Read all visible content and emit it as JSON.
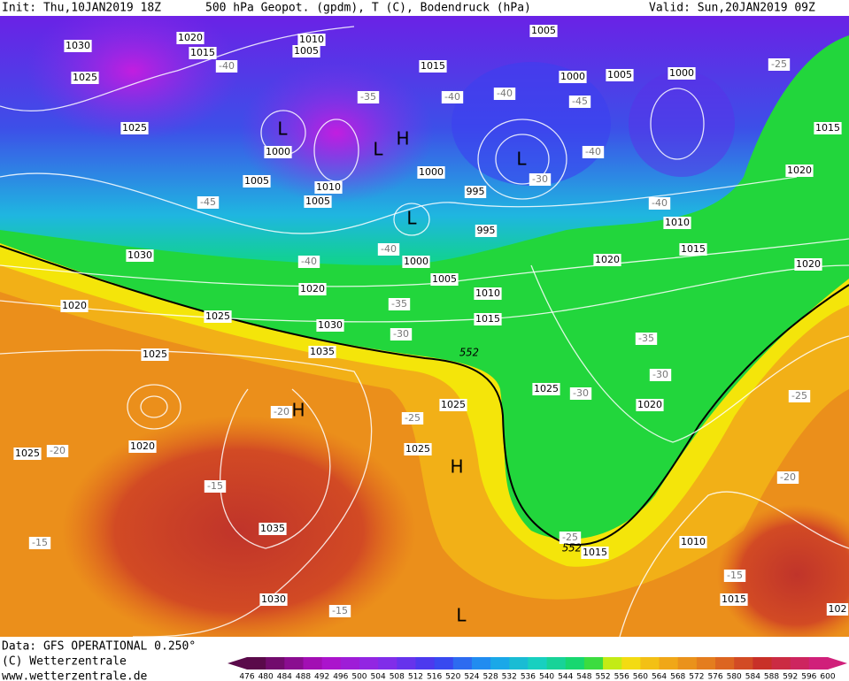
{
  "header": {
    "init": "Init: Thu,10JAN2019 18Z",
    "title": "500 hPa Geopot. (gpdm), T (C), Bodendruck (hPa)",
    "valid": "Valid: Sun,20JAN2019 09Z"
  },
  "map": {
    "pressure_labels": [
      "1030",
      "1020",
      "1015",
      "1010",
      "1005",
      "1005",
      "1015",
      "1000",
      "1005",
      "1000",
      "1025",
      "1025",
      "1015",
      "1000",
      "1005",
      "1010",
      "1005",
      "1000",
      "995",
      "995",
      "1010",
      "1015",
      "1020",
      "1030",
      "1000",
      "1020",
      "1020",
      "1005",
      "1010",
      "1020",
      "1020",
      "1025",
      "1015",
      "1030",
      "1035",
      "1025",
      "1025",
      "1025",
      "1020",
      "1020",
      "1025",
      "1025",
      "1035",
      "1010",
      "1015",
      "1030",
      "1015",
      "102"
    ],
    "temperature_labels": [
      "-40",
      "-35",
      "-40",
      "-40",
      "-45",
      "-25",
      "-40",
      "-45",
      "-30",
      "-40",
      "-40",
      "-40",
      "-35",
      "-30",
      "-35",
      "-30",
      "-30",
      "-25",
      "-20",
      "-25",
      "-20",
      "-15",
      "-20",
      "-15",
      "-25",
      "-15",
      "-15"
    ],
    "centers": [
      "L",
      "L",
      "H",
      "L",
      "L",
      "H",
      "H",
      "L"
    ],
    "contour_labels": [
      "552",
      "552"
    ]
  },
  "footer": {
    "data": "Data: GFS OPERATIONAL 0.250°",
    "copyright": "(C) Wetterzentrale",
    "url": "www.wetterzentrale.de"
  },
  "colorbar": {
    "ticks": [
      476,
      480,
      484,
      488,
      492,
      496,
      500,
      504,
      508,
      512,
      516,
      520,
      524,
      528,
      532,
      536,
      540,
      544,
      548,
      552,
      556,
      560,
      564,
      568,
      572,
      576,
      580,
      584,
      588,
      592,
      596,
      600
    ]
  }
}
